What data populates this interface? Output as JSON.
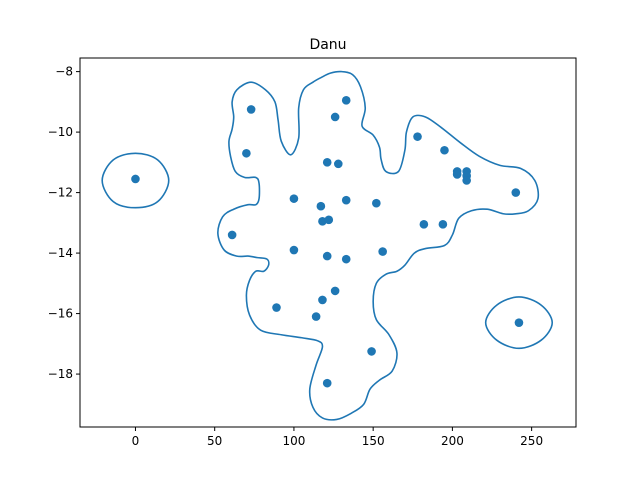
{
  "chart_data": {
    "type": "scatter",
    "title": "Danu",
    "xlabel": "",
    "ylabel": "",
    "xlim": [
      -35,
      278
    ],
    "ylim": [
      -19.75,
      -7.55
    ],
    "x_ticks": [
      0,
      50,
      100,
      150,
      200,
      250
    ],
    "y_ticks": [
      -8,
      -10,
      -12,
      -14,
      -16,
      -18
    ],
    "grid": false,
    "colors": {
      "points": "#1f77b4",
      "contour": "#1f77b4",
      "axes": "#000000"
    },
    "points": [
      {
        "x": 0,
        "y": -11.55
      },
      {
        "x": 73,
        "y": -9.25
      },
      {
        "x": 70,
        "y": -10.7
      },
      {
        "x": 61,
        "y": -13.4
      },
      {
        "x": 100,
        "y": -12.2
      },
      {
        "x": 100,
        "y": -13.9
      },
      {
        "x": 89,
        "y": -15.8
      },
      {
        "x": 114,
        "y": -16.1
      },
      {
        "x": 118,
        "y": -15.55
      },
      {
        "x": 121,
        "y": -18.3
      },
      {
        "x": 126,
        "y": -15.25
      },
      {
        "x": 121,
        "y": -14.1
      },
      {
        "x": 133,
        "y": -14.2
      },
      {
        "x": 118,
        "y": -12.95
      },
      {
        "x": 122,
        "y": -12.9
      },
      {
        "x": 117,
        "y": -12.45
      },
      {
        "x": 133,
        "y": -12.25
      },
      {
        "x": 121,
        "y": -11.0
      },
      {
        "x": 128,
        "y": -11.05
      },
      {
        "x": 126,
        "y": -9.5
      },
      {
        "x": 133,
        "y": -8.95
      },
      {
        "x": 152,
        "y": -12.35
      },
      {
        "x": 156,
        "y": -13.95
      },
      {
        "x": 149,
        "y": -17.25
      },
      {
        "x": 178,
        "y": -10.15
      },
      {
        "x": 182,
        "y": -13.05
      },
      {
        "x": 194,
        "y": -13.05
      },
      {
        "x": 195,
        "y": -10.6
      },
      {
        "x": 203,
        "y": -11.3
      },
      {
        "x": 203,
        "y": -11.4
      },
      {
        "x": 209,
        "y": -11.3
      },
      {
        "x": 209,
        "y": -11.45
      },
      {
        "x": 209,
        "y": -11.6
      },
      {
        "x": 240,
        "y": -12.0
      },
      {
        "x": 242,
        "y": -16.3
      }
    ],
    "contours": [
      [
        [
          0,
          -10.7
        ],
        [
          14,
          -10.92
        ],
        [
          21,
          -11.6
        ],
        [
          14,
          -12.3
        ],
        [
          0,
          -12.5
        ],
        [
          -14,
          -12.3
        ],
        [
          -21,
          -11.6
        ],
        [
          -14,
          -10.92
        ],
        [
          0,
          -10.7
        ]
      ],
      [
        [
          242,
          -15.45
        ],
        [
          256,
          -15.72
        ],
        [
          263,
          -16.3
        ],
        [
          256,
          -16.88
        ],
        [
          242,
          -17.15
        ],
        [
          228,
          -16.88
        ],
        [
          221,
          -16.3
        ],
        [
          228,
          -15.72
        ],
        [
          242,
          -15.45
        ]
      ],
      [
        [
          73,
          -8.35
        ],
        [
          82,
          -8.6
        ],
        [
          88,
          -9.0
        ],
        [
          90,
          -9.6
        ],
        [
          92,
          -10.3
        ],
        [
          98,
          -10.75
        ],
        [
          103,
          -10.2
        ],
        [
          103,
          -9.2
        ],
        [
          106,
          -8.6
        ],
        [
          112,
          -8.35
        ],
        [
          117,
          -8.2
        ],
        [
          123,
          -8.05
        ],
        [
          130,
          -8.0
        ],
        [
          137,
          -8.1
        ],
        [
          142,
          -8.5
        ],
        [
          145,
          -9.2
        ],
        [
          143,
          -9.8
        ],
        [
          150,
          -10.1
        ],
        [
          154,
          -10.5
        ],
        [
          155,
          -10.9
        ],
        [
          158,
          -11.3
        ],
        [
          166,
          -11.3
        ],
        [
          170,
          -10.6
        ],
        [
          171,
          -10.0
        ],
        [
          175,
          -9.5
        ],
        [
          183,
          -9.5
        ],
        [
          193,
          -9.85
        ],
        [
          205,
          -10.35
        ],
        [
          217,
          -10.8
        ],
        [
          230,
          -11.1
        ],
        [
          243,
          -11.2
        ],
        [
          252,
          -11.6
        ],
        [
          254,
          -12.2
        ],
        [
          248,
          -12.6
        ],
        [
          240,
          -12.7
        ],
        [
          232,
          -12.7
        ],
        [
          222,
          -12.55
        ],
        [
          212,
          -12.6
        ],
        [
          204,
          -12.85
        ],
        [
          200,
          -13.4
        ],
        [
          195,
          -13.75
        ],
        [
          183,
          -13.85
        ],
        [
          176,
          -14.0
        ],
        [
          170,
          -14.4
        ],
        [
          165,
          -14.6
        ],
        [
          158,
          -14.7
        ],
        [
          152,
          -15.0
        ],
        [
          150,
          -15.6
        ],
        [
          152,
          -16.2
        ],
        [
          160,
          -16.7
        ],
        [
          165,
          -17.3
        ],
        [
          162,
          -17.9
        ],
        [
          154,
          -18.2
        ],
        [
          148,
          -18.5
        ],
        [
          144,
          -19.0
        ],
        [
          136,
          -19.3
        ],
        [
          127,
          -19.5
        ],
        [
          118,
          -19.45
        ],
        [
          112,
          -19.1
        ],
        [
          110,
          -18.5
        ],
        [
          114,
          -17.7
        ],
        [
          118,
          -17.1
        ],
        [
          115,
          -16.9
        ],
        [
          105,
          -16.8
        ],
        [
          92,
          -16.7
        ],
        [
          79,
          -16.55
        ],
        [
          72,
          -16.05
        ],
        [
          70,
          -15.4
        ],
        [
          72,
          -14.9
        ],
        [
          76,
          -14.6
        ],
        [
          81,
          -14.6
        ],
        [
          84,
          -14.4
        ],
        [
          83,
          -14.2
        ],
        [
          77,
          -14.15
        ],
        [
          71,
          -14.1
        ],
        [
          64,
          -14.1
        ],
        [
          56,
          -13.9
        ],
        [
          52,
          -13.35
        ],
        [
          55,
          -12.8
        ],
        [
          62,
          -12.55
        ],
        [
          71,
          -12.4
        ],
        [
          76,
          -12.4
        ],
        [
          78,
          -12.2
        ],
        [
          78,
          -11.7
        ],
        [
          76,
          -11.5
        ],
        [
          69,
          -11.5
        ],
        [
          63,
          -11.3
        ],
        [
          60,
          -10.8
        ],
        [
          59,
          -10.3
        ],
        [
          61,
          -9.9
        ],
        [
          62,
          -9.5
        ],
        [
          61,
          -9.0
        ],
        [
          64,
          -8.6
        ],
        [
          73,
          -8.35
        ]
      ]
    ]
  }
}
